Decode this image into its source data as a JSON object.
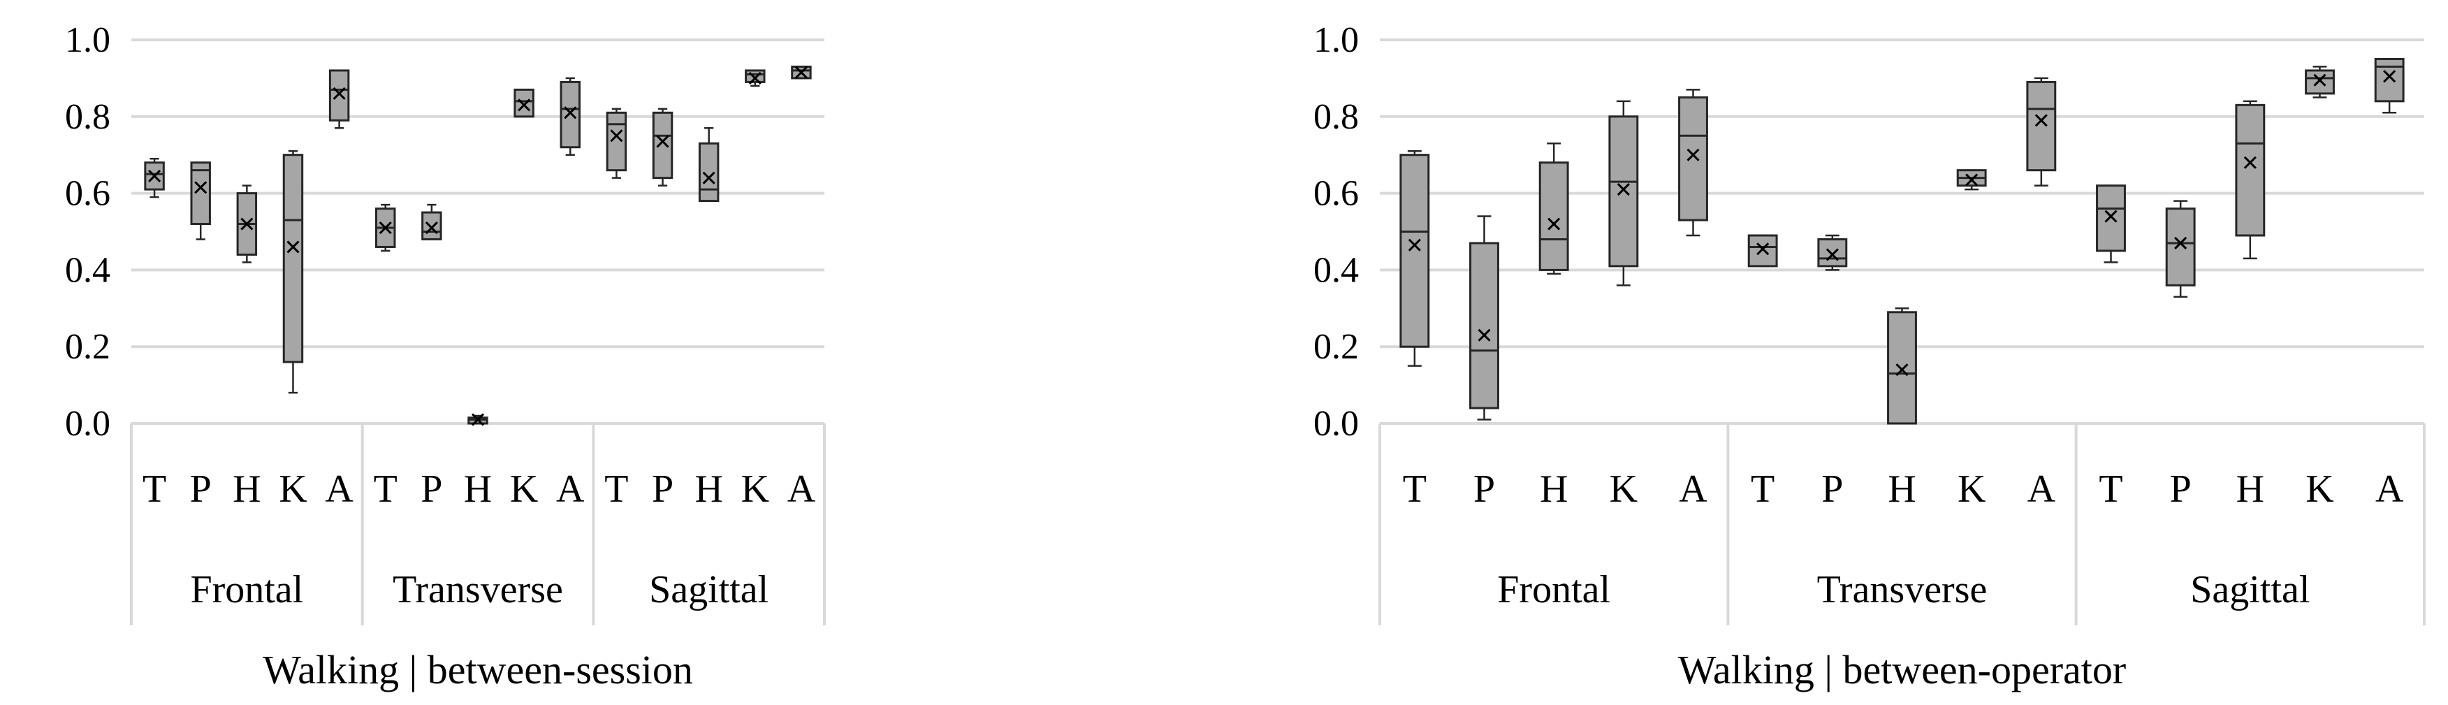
{
  "chart_data": [
    {
      "type": "boxplot",
      "title": "Walking  |  between-session",
      "ylim": [
        0.0,
        1.0
      ],
      "y_ticks": [
        "0.0",
        "0.2",
        "0.4",
        "0.6",
        "0.8",
        "1.0"
      ],
      "grid": true,
      "group_order": [
        "Frontal",
        "Transverse",
        "Sagittal"
      ],
      "categories": [
        "T",
        "P",
        "H",
        "K",
        "A"
      ],
      "boxes": [
        {
          "group": "Frontal",
          "category": "T",
          "min": 0.59,
          "q1": 0.61,
          "median": 0.65,
          "q3": 0.68,
          "max": 0.69,
          "mean": 0.645
        },
        {
          "group": "Frontal",
          "category": "P",
          "min": 0.48,
          "q1": 0.52,
          "median": 0.66,
          "q3": 0.68,
          "max": 0.68,
          "mean": 0.615
        },
        {
          "group": "Frontal",
          "category": "H",
          "min": 0.42,
          "q1": 0.44,
          "median": 0.52,
          "q3": 0.6,
          "max": 0.62,
          "mean": 0.52
        },
        {
          "group": "Frontal",
          "category": "K",
          "min": 0.08,
          "q1": 0.16,
          "median": 0.53,
          "q3": 0.7,
          "max": 0.71,
          "mean": 0.46
        },
        {
          "group": "Frontal",
          "category": "A",
          "min": 0.77,
          "q1": 0.79,
          "median": 0.87,
          "q3": 0.92,
          "max": 0.92,
          "mean": 0.86
        },
        {
          "group": "Transverse",
          "category": "T",
          "min": 0.45,
          "q1": 0.46,
          "median": 0.51,
          "q3": 0.56,
          "max": 0.57,
          "mean": 0.51
        },
        {
          "group": "Transverse",
          "category": "P",
          "min": 0.48,
          "q1": 0.48,
          "median": 0.5,
          "q3": 0.55,
          "max": 0.57,
          "mean": 0.51
        },
        {
          "group": "Transverse",
          "category": "H",
          "min": 0.0,
          "q1": 0.0,
          "median": 0.01,
          "q3": 0.015,
          "max": 0.02,
          "mean": 0.01
        },
        {
          "group": "Transverse",
          "category": "K",
          "min": 0.8,
          "q1": 0.8,
          "median": 0.84,
          "q3": 0.87,
          "max": 0.87,
          "mean": 0.83
        },
        {
          "group": "Transverse",
          "category": "A",
          "min": 0.7,
          "q1": 0.72,
          "median": 0.82,
          "q3": 0.89,
          "max": 0.9,
          "mean": 0.81
        },
        {
          "group": "Sagittal",
          "category": "T",
          "min": 0.64,
          "q1": 0.66,
          "median": 0.78,
          "q3": 0.81,
          "max": 0.82,
          "mean": 0.75
        },
        {
          "group": "Sagittal",
          "category": "P",
          "min": 0.62,
          "q1": 0.64,
          "median": 0.75,
          "q3": 0.81,
          "max": 0.82,
          "mean": 0.735
        },
        {
          "group": "Sagittal",
          "category": "H",
          "min": 0.58,
          "q1": 0.58,
          "median": 0.61,
          "q3": 0.73,
          "max": 0.77,
          "mean": 0.64
        },
        {
          "group": "Sagittal",
          "category": "K",
          "min": 0.88,
          "q1": 0.89,
          "median": 0.91,
          "q3": 0.92,
          "max": 0.92,
          "mean": 0.9
        },
        {
          "group": "Sagittal",
          "category": "A",
          "min": 0.9,
          "q1": 0.9,
          "median": 0.92,
          "q3": 0.93,
          "max": 0.93,
          "mean": 0.915
        }
      ]
    },
    {
      "type": "boxplot",
      "title": "Walking  |  between-operator",
      "ylim": [
        0.0,
        1.0
      ],
      "y_ticks": [
        "0.0",
        "0.2",
        "0.4",
        "0.6",
        "0.8",
        "1.0"
      ],
      "grid": true,
      "group_order": [
        "Frontal",
        "Transverse",
        "Sagittal"
      ],
      "categories": [
        "T",
        "P",
        "H",
        "K",
        "A"
      ],
      "boxes": [
        {
          "group": "Frontal",
          "category": "T",
          "min": 0.15,
          "q1": 0.2,
          "median": 0.5,
          "q3": 0.7,
          "max": 0.71,
          "mean": 0.465
        },
        {
          "group": "Frontal",
          "category": "P",
          "min": 0.01,
          "q1": 0.04,
          "median": 0.19,
          "q3": 0.47,
          "max": 0.54,
          "mean": 0.23
        },
        {
          "group": "Frontal",
          "category": "H",
          "min": 0.39,
          "q1": 0.4,
          "median": 0.48,
          "q3": 0.68,
          "max": 0.73,
          "mean": 0.52
        },
        {
          "group": "Frontal",
          "category": "K",
          "min": 0.36,
          "q1": 0.41,
          "median": 0.63,
          "q3": 0.8,
          "max": 0.84,
          "mean": 0.61
        },
        {
          "group": "Frontal",
          "category": "A",
          "min": 0.49,
          "q1": 0.53,
          "median": 0.75,
          "q3": 0.85,
          "max": 0.87,
          "mean": 0.7
        },
        {
          "group": "Transverse",
          "category": "T",
          "min": 0.41,
          "q1": 0.41,
          "median": 0.46,
          "q3": 0.49,
          "max": 0.49,
          "mean": 0.455
        },
        {
          "group": "Transverse",
          "category": "P",
          "min": 0.4,
          "q1": 0.41,
          "median": 0.43,
          "q3": 0.48,
          "max": 0.49,
          "mean": 0.44
        },
        {
          "group": "Transverse",
          "category": "H",
          "min": 0.0,
          "q1": 0.0,
          "median": 0.13,
          "q3": 0.29,
          "max": 0.3,
          "mean": 0.14
        },
        {
          "group": "Transverse",
          "category": "K",
          "min": 0.61,
          "q1": 0.62,
          "median": 0.64,
          "q3": 0.66,
          "max": 0.66,
          "mean": 0.635
        },
        {
          "group": "Transverse",
          "category": "A",
          "min": 0.62,
          "q1": 0.66,
          "median": 0.82,
          "q3": 0.89,
          "max": 0.9,
          "mean": 0.79
        },
        {
          "group": "Sagittal",
          "category": "T",
          "min": 0.42,
          "q1": 0.45,
          "median": 0.56,
          "q3": 0.62,
          "max": 0.62,
          "mean": 0.54
        },
        {
          "group": "Sagittal",
          "category": "P",
          "min": 0.33,
          "q1": 0.36,
          "median": 0.47,
          "q3": 0.56,
          "max": 0.58,
          "mean": 0.47
        },
        {
          "group": "Sagittal",
          "category": "H",
          "min": 0.43,
          "q1": 0.49,
          "median": 0.73,
          "q3": 0.83,
          "max": 0.84,
          "mean": 0.68
        },
        {
          "group": "Sagittal",
          "category": "K",
          "min": 0.85,
          "q1": 0.86,
          "median": 0.9,
          "q3": 0.92,
          "max": 0.93,
          "mean": 0.895
        },
        {
          "group": "Sagittal",
          "category": "A",
          "min": 0.81,
          "q1": 0.84,
          "median": 0.93,
          "q3": 0.95,
          "max": 0.95,
          "mean": 0.905
        }
      ]
    }
  ]
}
